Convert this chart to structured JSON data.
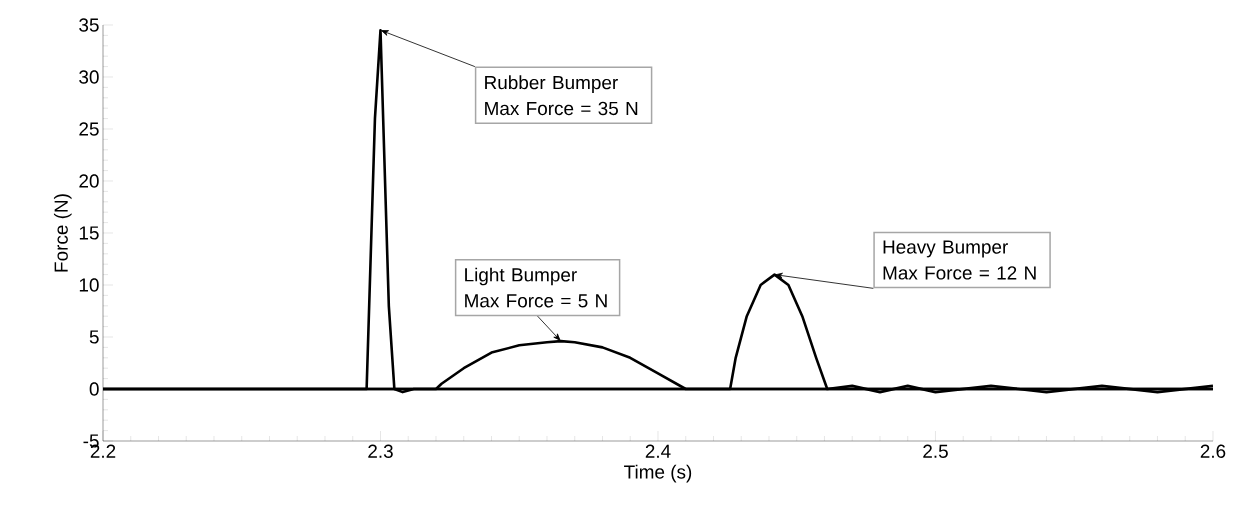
{
  "chart_data": {
    "type": "line",
    "xlabel": "Time (s)",
    "ylabel": "Force (N)",
    "xlim": [
      2.2,
      2.6
    ],
    "ylim": [
      -5,
      35
    ],
    "xticks": [
      2.2,
      2.3,
      2.4,
      2.5,
      2.6
    ],
    "yticks": [
      -5,
      0,
      5,
      10,
      15,
      20,
      25,
      30,
      35
    ],
    "grid": false,
    "marker": "none",
    "line_style": "solid",
    "series": [
      {
        "color": "#000000",
        "x": [
          2.2,
          2.295,
          2.298,
          2.3,
          2.303,
          2.305,
          2.308,
          2.312,
          2.6
        ],
        "values": [
          0,
          0,
          26,
          34.5,
          8,
          0,
          -0.3,
          0,
          0
        ]
      },
      {
        "color": "#000000",
        "x": [
          2.2,
          2.32,
          2.322,
          2.33,
          2.34,
          2.35,
          2.36,
          2.365,
          2.37,
          2.38,
          2.39,
          2.4,
          2.41,
          2.6
        ],
        "values": [
          0,
          0,
          0.5,
          2,
          3.5,
          4.2,
          4.5,
          4.6,
          4.5,
          4,
          3,
          1.5,
          0,
          0
        ]
      },
      {
        "color": "#000000",
        "x": [
          2.2,
          2.426,
          2.428,
          2.432,
          2.437,
          2.442,
          2.447,
          2.452,
          2.457,
          2.461,
          2.47,
          2.48,
          2.49,
          2.5,
          2.52,
          2.54,
          2.56,
          2.58,
          2.6
        ],
        "values": [
          0,
          0,
          3,
          7,
          10,
          11,
          10,
          7,
          3,
          0,
          0.3,
          -0.3,
          0.3,
          -0.3,
          0.3,
          -0.3,
          0.3,
          -0.3,
          0.3
        ]
      }
    ],
    "annotations": [
      {
        "text": "Rubber Bumper Max Force = 35 N",
        "x": 2.3,
        "y": 34.5
      },
      {
        "text": "Light Bumper Max Force = 5 N",
        "x": 2.365,
        "y": 4.6
      },
      {
        "text": "Heavy Bumper Max Force = 12 N",
        "x": 2.442,
        "y": 11
      }
    ]
  }
}
